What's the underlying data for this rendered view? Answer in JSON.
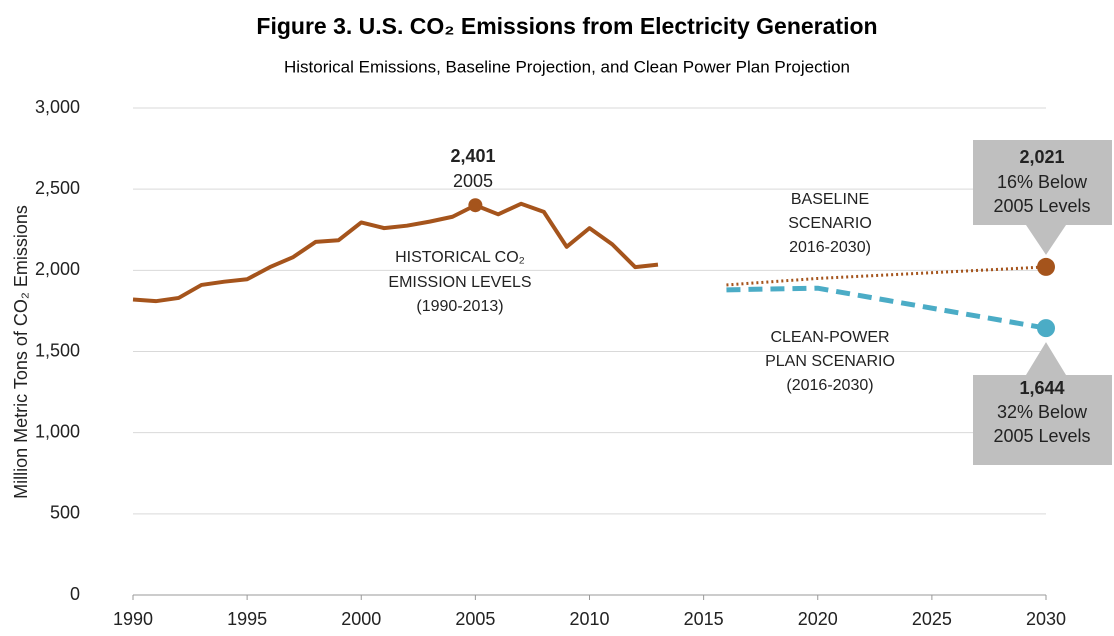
{
  "chart_data": {
    "type": "line",
    "title": "Figure 3. U.S. CO₂ Emissions from Electricity Generation",
    "subtitle": "Historical Emissions, Baseline Projection, and Clean Power Plan Projection",
    "y_label": "Million Metric Tons of CO₂ Emissions",
    "xlim": [
      1990,
      2030
    ],
    "xticks": [
      1990,
      1995,
      2000,
      2005,
      2010,
      2015,
      2020,
      2025,
      2030
    ],
    "ylim": [
      0,
      3000
    ],
    "yticks": [
      0,
      500,
      {
        "value": 1000,
        "label": "1,000"
      },
      {
        "value": 1500,
        "label": "1,500"
      },
      {
        "value": 2000,
        "label": "2,000"
      },
      {
        "value": 2500,
        "label": "2,500"
      },
      {
        "value": 3000,
        "label": "3,000"
      }
    ],
    "grid": true,
    "series": [
      {
        "color": "#a5541c",
        "style": "solid",
        "x": [
          1990,
          1991,
          1992,
          1993,
          1994,
          1995,
          1996,
          1997,
          1998,
          1999,
          2000,
          2001,
          2002,
          2003,
          2004,
          2005,
          2006,
          2007,
          2008,
          2009,
          2010,
          2011,
          2012,
          2013
        ],
        "values": [
          1820,
          1810,
          1830,
          1910,
          1930,
          1945,
          2020,
          2080,
          2175,
          2185,
          2295,
          2260,
          2275,
          2300,
          2330,
          2401,
          2345,
          2410,
          2360,
          2145,
          2260,
          2160,
          2020,
          2035
        ],
        "value_labels": [
          null,
          null,
          null,
          null,
          null,
          null,
          null,
          null,
          null,
          null,
          null,
          null,
          null,
          null,
          null,
          "2,401",
          null,
          null,
          null,
          null,
          null,
          null,
          null,
          null
        ],
        "marker_last_labeled": true
      },
      {
        "color": "#a5541c",
        "style": "dotted",
        "x": [
          2016,
          2020,
          2030
        ],
        "values": [
          1910,
          1950,
          2021
        ],
        "value_labels": [
          null,
          null,
          "2,021"
        ]
      },
      {
        "color": "#4bacc6",
        "style": "dashed",
        "x": [
          2016,
          2020,
          2030
        ],
        "values": [
          1880,
          1890,
          1644
        ],
        "value_labels": [
          null,
          null,
          "1,644"
        ]
      }
    ],
    "annotations": [
      "2005",
      "HISTORICAL CO₂",
      "EMISSION LEVELS",
      "(1990-2013)",
      "BASELINE",
      "SCENARIO",
      "2016-2030)",
      "CLEAN-POWER",
      "PLAN SCENARIO",
      "(2016-2030)",
      "16% Below",
      "2005 Levels",
      "32% Below",
      "2005 Levels"
    ]
  }
}
